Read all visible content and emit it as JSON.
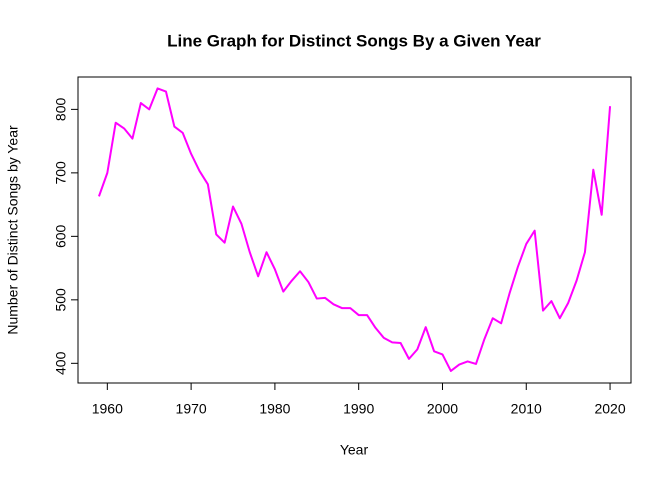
{
  "chart_data": {
    "type": "line",
    "title": "Line Graph for Distinct Songs By a Given Year",
    "x_label": "Year",
    "y_label": "Number of Distinct Songs by Year",
    "x": [
      1959,
      1960,
      1961,
      1962,
      1963,
      1964,
      1965,
      1966,
      1967,
      1968,
      1969,
      1970,
      1971,
      1972,
      1973,
      1974,
      1975,
      1976,
      1977,
      1978,
      1979,
      1980,
      1981,
      1982,
      1983,
      1984,
      1985,
      1986,
      1987,
      1988,
      1989,
      1990,
      1991,
      1992,
      1993,
      1994,
      1995,
      1996,
      1997,
      1998,
      1999,
      2000,
      2001,
      2002,
      2003,
      2004,
      2005,
      2006,
      2007,
      2008,
      2009,
      2010,
      2011,
      2012,
      2013,
      2014,
      2015,
      2016,
      2017,
      2018,
      2019,
      2020
    ],
    "series": [
      {
        "color": "#ff00ff",
        "values": [
          663,
          700,
          779,
          770,
          754,
          810,
          800,
          833,
          828,
          773,
          763,
          730,
          703,
          682,
          603,
          590,
          647,
          620,
          575,
          537,
          575,
          548,
          513,
          530,
          545,
          528,
          502,
          503,
          493,
          487,
          487,
          476,
          476,
          456,
          440,
          433,
          432,
          407,
          422,
          457,
          419,
          414,
          388,
          398,
          403,
          399,
          438,
          471,
          463,
          510,
          552,
          588,
          609,
          483,
          498,
          471,
          495,
          530,
          575,
          705,
          634,
          805
        ]
      }
    ],
    "xlim": [
      1956.5,
      2022.5
    ],
    "ylim": [
      369,
      851
    ],
    "xticks": [
      1960,
      1970,
      1980,
      1990,
      2000,
      2010,
      2020
    ],
    "yticks": [
      400,
      500,
      600,
      700,
      800
    ]
  }
}
